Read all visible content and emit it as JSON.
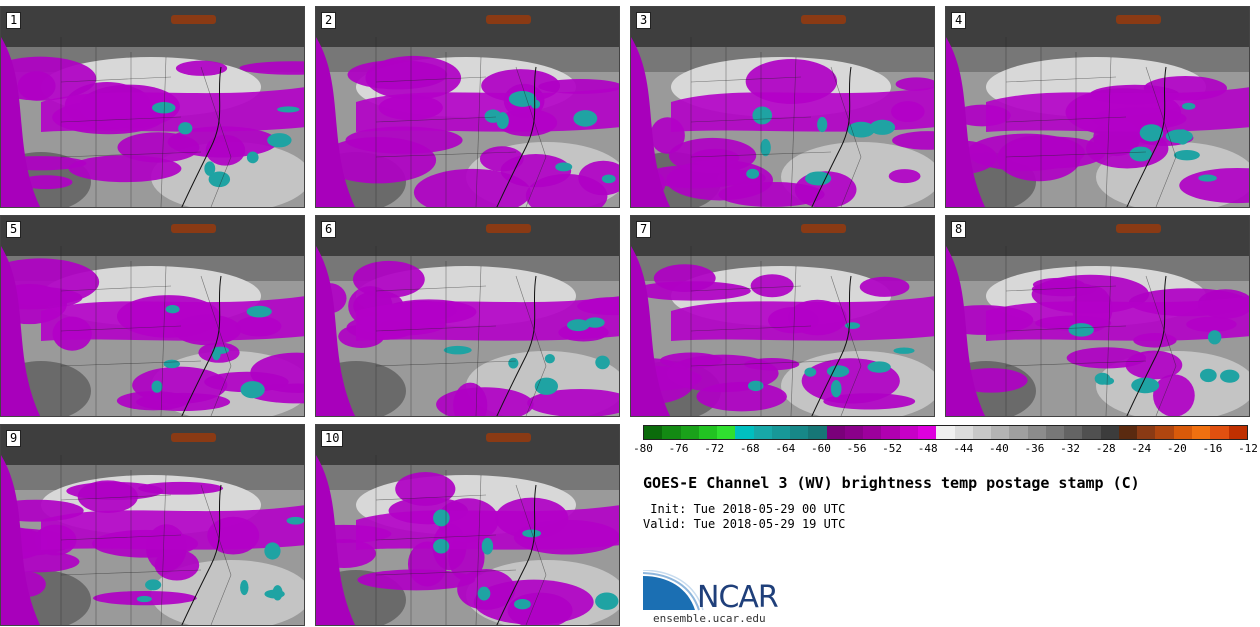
{
  "panels": [
    {
      "label": "1"
    },
    {
      "label": "2"
    },
    {
      "label": "3"
    },
    {
      "label": "4"
    },
    {
      "label": "5"
    },
    {
      "label": "6"
    },
    {
      "label": "7"
    },
    {
      "label": "8"
    },
    {
      "label": "9"
    },
    {
      "label": "10"
    }
  ],
  "colorbar": {
    "colors": [
      "#0b6b0b",
      "#138a13",
      "#1aa21a",
      "#22c322",
      "#30df30",
      "#00bfbf",
      "#17a8a8",
      "#179898",
      "#178888",
      "#167676",
      "#7a007a",
      "#8a008a",
      "#9c009c",
      "#b000b0",
      "#c600c6",
      "#de00de",
      "#f0f0f0",
      "#dcdcdc",
      "#c8c8c8",
      "#b4b4b4",
      "#a0a0a0",
      "#8c8c8c",
      "#787878",
      "#646464",
      "#505050",
      "#3c3c3c",
      "#5a2a10",
      "#8a3a14",
      "#b0460f",
      "#d85a0a",
      "#f07010",
      "#e05010",
      "#c03000"
    ],
    "ticks": [
      "-80",
      "-76",
      "-72",
      "-68",
      "-64",
      "-60",
      "-56",
      "-52",
      "-48",
      "-44",
      "-40",
      "-36",
      "-32",
      "-28",
      "-24",
      "-20",
      "-16",
      "-12"
    ]
  },
  "title": "GOES-E Channel 3 (WV) brightness temp postage stamp (C)",
  "init": " Init: Tue 2018-05-29 00 UTC",
  "valid": "Valid: Tue 2018-05-29 19 UTC",
  "logo": {
    "name": "NCAR",
    "url": "ensemble.ucar.edu"
  }
}
